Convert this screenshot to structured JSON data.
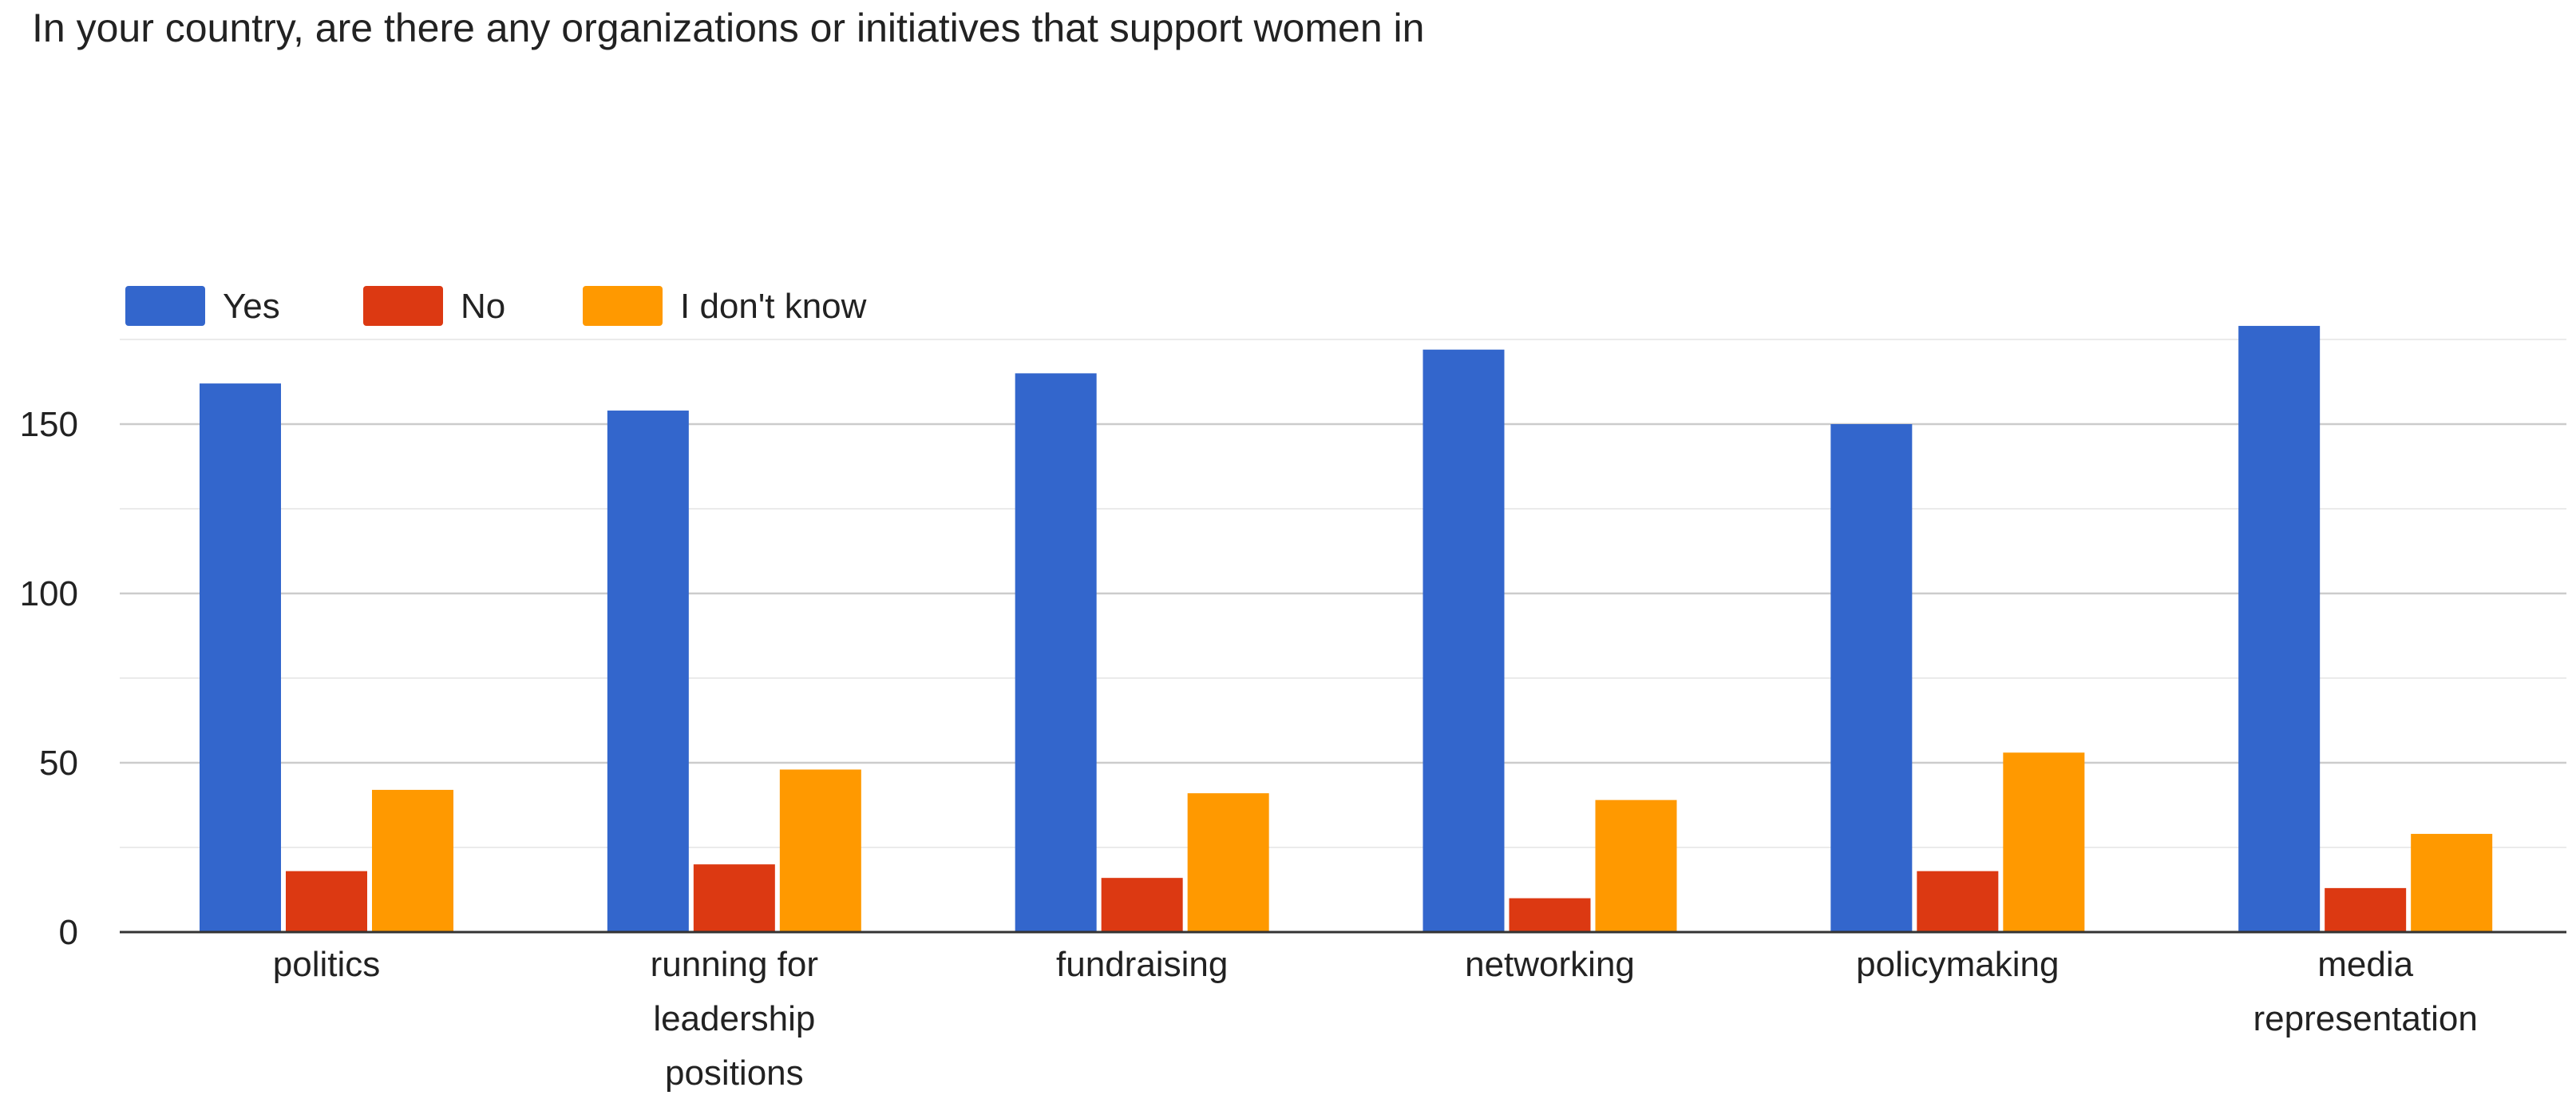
{
  "chart_data": {
    "type": "bar",
    "title": "In your country, are there any organizations or initiatives that support women in",
    "xlabel": "",
    "ylabel": "",
    "categories": [
      [
        "politics"
      ],
      [
        "running for",
        "leadership",
        "positions"
      ],
      [
        "fundraising"
      ],
      [
        "networking"
      ],
      [
        "policymaking"
      ],
      [
        "media",
        "representation"
      ]
    ],
    "series": [
      {
        "name": "Yes",
        "color": "#3366cc",
        "values": [
          162,
          154,
          165,
          172,
          150,
          179
        ]
      },
      {
        "name": "No",
        "color": "#dc3912",
        "values": [
          18,
          20,
          16,
          10,
          18,
          13
        ]
      },
      {
        "name": "I don't know",
        "color": "#ff9900",
        "values": [
          42,
          48,
          41,
          39,
          53,
          29
        ]
      }
    ],
    "ylim": [
      0,
      180
    ],
    "yticks": [
      0,
      50,
      100,
      150
    ],
    "grid": true,
    "legend_position": "top-left"
  }
}
